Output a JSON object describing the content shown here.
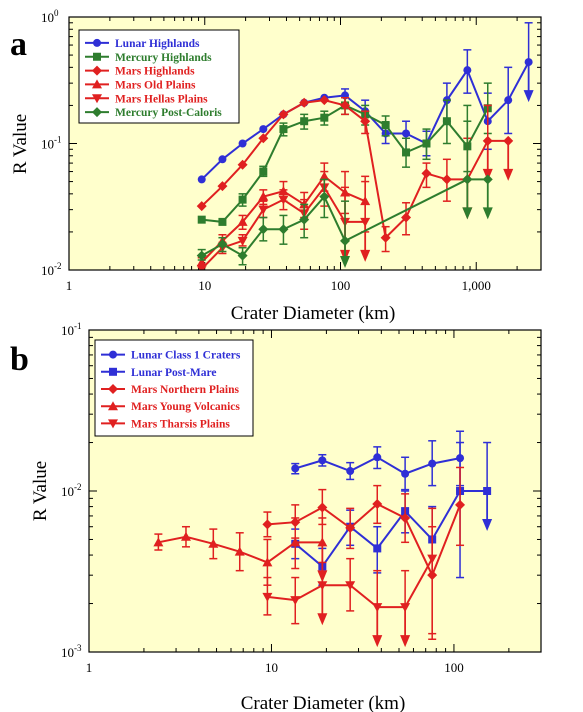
{
  "colors": {
    "blue": "#2f2fd6",
    "green": "#2e7d2e",
    "red": "#e02020",
    "plot_bg": "#ffffcc"
  },
  "chart_data": [
    {
      "panel": "a",
      "type": "line",
      "xlabel": "Crater Diameter (km)",
      "ylabel": "R Value",
      "x_scale": "log",
      "y_scale": "log",
      "xlim": [
        1,
        3000
      ],
      "ylim": [
        0.01,
        1
      ],
      "x_ticks": [
        {
          "v": 1,
          "label": "1"
        },
        {
          "v": 10,
          "label": "10"
        },
        {
          "v": 100,
          "label": "100"
        },
        {
          "v": 1000,
          "label": "1,000"
        }
      ],
      "y_ticks": [
        {
          "v": 0.01,
          "base": "10",
          "exp": "-2"
        },
        {
          "v": 0.1,
          "base": "10",
          "exp": "-1"
        },
        {
          "v": 1,
          "base": "10",
          "exp": "0"
        }
      ],
      "legend_position": "top-left",
      "series": [
        {
          "name": "Lunar Highlands",
          "color": "blue",
          "marker": "circle",
          "points": [
            {
              "x": 9.5,
              "y": 0.052
            },
            {
              "x": 13.5,
              "y": 0.075
            },
            {
              "x": 19,
              "y": 0.1
            },
            {
              "x": 27,
              "y": 0.13
            },
            {
              "x": 38,
              "y": 0.17
            },
            {
              "x": 54,
              "y": 0.21
            },
            {
              "x": 76,
              "y": 0.23
            },
            {
              "x": 108,
              "y": 0.24,
              "lo": 0.2,
              "hi": 0.27
            },
            {
              "x": 152,
              "y": 0.18,
              "lo": 0.15,
              "hi": 0.22
            },
            {
              "x": 215,
              "y": 0.12,
              "lo": 0.1,
              "hi": 0.145
            },
            {
              "x": 304,
              "y": 0.12,
              "lo": 0.09,
              "hi": 0.15
            },
            {
              "x": 430,
              "y": 0.1,
              "lo": 0.08,
              "hi": 0.125
            },
            {
              "x": 608,
              "y": 0.22,
              "lo": 0.15,
              "hi": 0.3
            },
            {
              "x": 860,
              "y": 0.38,
              "lo": 0.25,
              "hi": 0.55
            },
            {
              "x": 1216,
              "y": 0.15,
              "lo": 0.09,
              "hi": 0.25
            },
            {
              "x": 1720,
              "y": 0.22,
              "lo": 0.12,
              "hi": 0.4
            },
            {
              "x": 2432,
              "y": 0.44,
              "hi": 0.9,
              "down": true
            }
          ]
        },
        {
          "name": "Mercury Highlands",
          "color": "green",
          "marker": "square",
          "points": [
            {
              "x": 9.5,
              "y": 0.025
            },
            {
              "x": 13.5,
              "y": 0.024
            },
            {
              "x": 19,
              "y": 0.036,
              "lo": 0.032,
              "hi": 0.04
            },
            {
              "x": 27,
              "y": 0.06,
              "lo": 0.055,
              "hi": 0.066
            },
            {
              "x": 38,
              "y": 0.13,
              "lo": 0.115,
              "hi": 0.145
            },
            {
              "x": 54,
              "y": 0.15,
              "lo": 0.13,
              "hi": 0.17
            },
            {
              "x": 76,
              "y": 0.16,
              "lo": 0.14,
              "hi": 0.18
            },
            {
              "x": 108,
              "y": 0.2,
              "lo": 0.17,
              "hi": 0.23
            },
            {
              "x": 152,
              "y": 0.17,
              "lo": 0.14,
              "hi": 0.2
            },
            {
              "x": 215,
              "y": 0.14,
              "lo": 0.115,
              "hi": 0.165
            },
            {
              "x": 304,
              "y": 0.085,
              "lo": 0.065,
              "hi": 0.11
            },
            {
              "x": 430,
              "y": 0.1,
              "lo": 0.075,
              "hi": 0.13
            },
            {
              "x": 608,
              "y": 0.15,
              "lo": 0.1,
              "hi": 0.22
            },
            {
              "x": 860,
              "y": 0.095,
              "lo": 0.06,
              "hi": 0.15
            },
            {
              "x": 1216,
              "y": 0.19,
              "lo": 0.12,
              "hi": 0.3
            }
          ]
        },
        {
          "name": "Mars Highlands",
          "color": "red",
          "marker": "diamond",
          "points": [
            {
              "x": 9.5,
              "y": 0.032
            },
            {
              "x": 13.5,
              "y": 0.046
            },
            {
              "x": 19,
              "y": 0.068
            },
            {
              "x": 27,
              "y": 0.11
            },
            {
              "x": 38,
              "y": 0.17
            },
            {
              "x": 54,
              "y": 0.21
            },
            {
              "x": 76,
              "y": 0.22
            },
            {
              "x": 108,
              "y": 0.2,
              "lo": 0.17,
              "hi": 0.23
            },
            {
              "x": 152,
              "y": 0.15,
              "lo": 0.12,
              "hi": 0.18
            },
            {
              "x": 215,
              "y": 0.018,
              "lo": 0.014,
              "hi": 0.022
            },
            {
              "x": 304,
              "y": 0.026,
              "lo": 0.019,
              "hi": 0.034
            },
            {
              "x": 430,
              "y": 0.058,
              "lo": 0.045,
              "hi": 0.07
            },
            {
              "x": 608,
              "y": 0.052,
              "lo": 0.035,
              "hi": 0.075
            },
            {
              "x": 860,
              "y": 0.052,
              "hi": 0.11,
              "down": true
            },
            {
              "x": 1216,
              "y": 0.105,
              "hi": 0.2,
              "down": true
            },
            {
              "x": 1720,
              "y": 0.105,
              "down": true
            }
          ]
        },
        {
          "name": "Mars Old Plains",
          "color": "red",
          "marker": "triangle-up",
          "points": [
            {
              "x": 9.5,
              "y": 0.0115,
              "lo": 0.0105,
              "hi": 0.0125
            },
            {
              "x": 13.5,
              "y": 0.017,
              "lo": 0.0155,
              "hi": 0.019
            },
            {
              "x": 19,
              "y": 0.024,
              "lo": 0.021,
              "hi": 0.027
            },
            {
              "x": 27,
              "y": 0.038,
              "lo": 0.033,
              "hi": 0.043
            },
            {
              "x": 38,
              "y": 0.042,
              "lo": 0.035,
              "hi": 0.05
            },
            {
              "x": 54,
              "y": 0.033,
              "lo": 0.026,
              "hi": 0.041
            },
            {
              "x": 76,
              "y": 0.055,
              "lo": 0.042,
              "hi": 0.07
            },
            {
              "x": 108,
              "y": 0.041,
              "lo": 0.028,
              "hi": 0.06
            },
            {
              "x": 152,
              "y": 0.035,
              "lo": 0.02,
              "hi": 0.055
            }
          ]
        },
        {
          "name": "Mars Hellas Plains",
          "color": "red",
          "marker": "triangle-down",
          "points": [
            {
              "x": 9.5,
              "y": 0.0102
            },
            {
              "x": 13.5,
              "y": 0.015,
              "lo": 0.0135,
              "hi": 0.0165
            },
            {
              "x": 19,
              "y": 0.017,
              "lo": 0.0155,
              "hi": 0.019
            },
            {
              "x": 27,
              "y": 0.03,
              "lo": 0.026,
              "hi": 0.035
            },
            {
              "x": 38,
              "y": 0.036,
              "lo": 0.03,
              "hi": 0.043
            },
            {
              "x": 54,
              "y": 0.028,
              "lo": 0.021,
              "hi": 0.036
            },
            {
              "x": 76,
              "y": 0.045,
              "lo": 0.032,
              "hi": 0.06
            },
            {
              "x": 108,
              "y": 0.024,
              "hi": 0.045,
              "down": true
            },
            {
              "x": 152,
              "y": 0.024,
              "hi": 0.05,
              "down": true
            }
          ]
        },
        {
          "name": "Mercury Post-Caloris",
          "color": "green",
          "marker": "diamond",
          "points": [
            {
              "x": 9.5,
              "y": 0.013,
              "lo": 0.012,
              "hi": 0.0145
            },
            {
              "x": 13.5,
              "y": 0.016,
              "lo": 0.014,
              "hi": 0.018
            },
            {
              "x": 19,
              "y": 0.013,
              "lo": 0.011,
              "hi": 0.015
            },
            {
              "x": 27,
              "y": 0.021,
              "lo": 0.017,
              "hi": 0.026
            },
            {
              "x": 38,
              "y": 0.021,
              "lo": 0.016,
              "hi": 0.027
            },
            {
              "x": 54,
              "y": 0.025,
              "lo": 0.018,
              "hi": 0.033
            },
            {
              "x": 76,
              "y": 0.038,
              "lo": 0.026,
              "hi": 0.052
            },
            {
              "x": 108,
              "y": 0.017,
              "hi": 0.035,
              "down": true
            },
            {
              "x": 860,
              "y": 0.052,
              "hi": 0.2,
              "down": true
            },
            {
              "x": 1216,
              "y": 0.052,
              "down": true
            }
          ]
        }
      ]
    },
    {
      "panel": "b",
      "type": "line",
      "xlabel": "Crater Diameter (km)",
      "ylabel": "R Value",
      "x_scale": "log",
      "y_scale": "log",
      "xlim": [
        1,
        300
      ],
      "ylim": [
        0.001,
        0.1
      ],
      "x_ticks": [
        {
          "v": 1,
          "label": "1"
        },
        {
          "v": 10,
          "label": "10"
        },
        {
          "v": 100,
          "label": "100"
        }
      ],
      "y_ticks": [
        {
          "v": 0.001,
          "base": "10",
          "exp": "-3"
        },
        {
          "v": 0.01,
          "base": "10",
          "exp": "-2"
        },
        {
          "v": 0.1,
          "base": "10",
          "exp": "-1"
        }
      ],
      "legend_position": "top-left",
      "series": [
        {
          "name": "Lunar Class 1 Craters",
          "color": "blue",
          "marker": "circle",
          "points": [
            {
              "x": 13.5,
              "y": 0.0138,
              "lo": 0.0128,
              "hi": 0.0148
            },
            {
              "x": 19,
              "y": 0.0155,
              "lo": 0.0143,
              "hi": 0.0168
            },
            {
              "x": 27,
              "y": 0.0133,
              "lo": 0.0118,
              "hi": 0.015
            },
            {
              "x": 38,
              "y": 0.0162,
              "lo": 0.0138,
              "hi": 0.0188
            },
            {
              "x": 54,
              "y": 0.0128,
              "lo": 0.0102,
              "hi": 0.0162
            },
            {
              "x": 76,
              "y": 0.0148,
              "lo": 0.0108,
              "hi": 0.0205
            },
            {
              "x": 108,
              "y": 0.016,
              "lo": 0.0108,
              "hi": 0.0235
            }
          ]
        },
        {
          "name": "Lunar Post-Mare",
          "color": "blue",
          "marker": "square",
          "points": [
            {
              "x": 13.5,
              "y": 0.0047,
              "lo": 0.0038,
              "hi": 0.0058
            },
            {
              "x": 19,
              "y": 0.0034,
              "lo": 0.0026,
              "hi": 0.0044
            },
            {
              "x": 27,
              "y": 0.006,
              "lo": 0.0046,
              "hi": 0.0076
            },
            {
              "x": 38,
              "y": 0.0044,
              "lo": 0.0031,
              "hi": 0.006
            },
            {
              "x": 54,
              "y": 0.0075,
              "lo": 0.0055,
              "hi": 0.01
            },
            {
              "x": 76,
              "y": 0.005,
              "lo": 0.003,
              "hi": 0.008
            },
            {
              "x": 108,
              "y": 0.01,
              "lo": 0.0029,
              "hi": 0.02
            },
            {
              "x": 152,
              "y": 0.01,
              "hi": 0.02,
              "down": true
            }
          ]
        },
        {
          "name": "Mars Northern Plains",
          "color": "red",
          "marker": "diamond",
          "points": [
            {
              "x": 9.5,
              "y": 0.0062,
              "lo": 0.0052,
              "hi": 0.0074
            },
            {
              "x": 13.5,
              "y": 0.0064,
              "lo": 0.0051,
              "hi": 0.0082
            },
            {
              "x": 19,
              "y": 0.0079,
              "lo": 0.0062,
              "hi": 0.0102
            },
            {
              "x": 27,
              "y": 0.0059,
              "lo": 0.0044,
              "hi": 0.0078
            },
            {
              "x": 38,
              "y": 0.0083,
              "lo": 0.0063,
              "hi": 0.0108
            },
            {
              "x": 54,
              "y": 0.0068,
              "lo": 0.0048,
              "hi": 0.0096
            },
            {
              "x": 76,
              "y": 0.003,
              "lo": 0.0012,
              "hi": 0.006
            },
            {
              "x": 108,
              "y": 0.0082,
              "lo": 0.0046,
              "hi": 0.014
            }
          ]
        },
        {
          "name": "Mars Young Volcanics",
          "color": "red",
          "marker": "triangle-up",
          "points": [
            {
              "x": 2.4,
              "y": 0.0048,
              "lo": 0.0043,
              "hi": 0.0054
            },
            {
              "x": 3.4,
              "y": 0.0052,
              "lo": 0.0045,
              "hi": 0.006
            },
            {
              "x": 4.8,
              "y": 0.0047,
              "lo": 0.0038,
              "hi": 0.0058
            },
            {
              "x": 6.7,
              "y": 0.0042,
              "lo": 0.0032,
              "hi": 0.0055
            },
            {
              "x": 9.5,
              "y": 0.0036,
              "lo": 0.0026,
              "hi": 0.005
            },
            {
              "x": 13.5,
              "y": 0.0048,
              "lo": 0.0033,
              "hi": 0.0068
            },
            {
              "x": 19,
              "y": 0.0048,
              "hi": 0.0068,
              "down": true
            }
          ]
        },
        {
          "name": "Mars Tharsis Plains",
          "color": "red",
          "marker": "triangle-down",
          "points": [
            {
              "x": 9.5,
              "y": 0.0022,
              "lo": 0.0017,
              "hi": 0.0029
            },
            {
              "x": 13.5,
              "y": 0.0021,
              "lo": 0.0015,
              "hi": 0.0029
            },
            {
              "x": 19,
              "y": 0.0026,
              "hi": 0.0036,
              "down": true
            },
            {
              "x": 27,
              "y": 0.0026,
              "lo": 0.0018,
              "hi": 0.0038
            },
            {
              "x": 38,
              "y": 0.0019,
              "hi": 0.0032,
              "down": true
            },
            {
              "x": 54,
              "y": 0.0019,
              "hi": 0.0032,
              "down": true
            },
            {
              "x": 76,
              "y": 0.0038,
              "lo": 0.0013,
              "hi": 0.0078
            }
          ]
        }
      ]
    }
  ]
}
